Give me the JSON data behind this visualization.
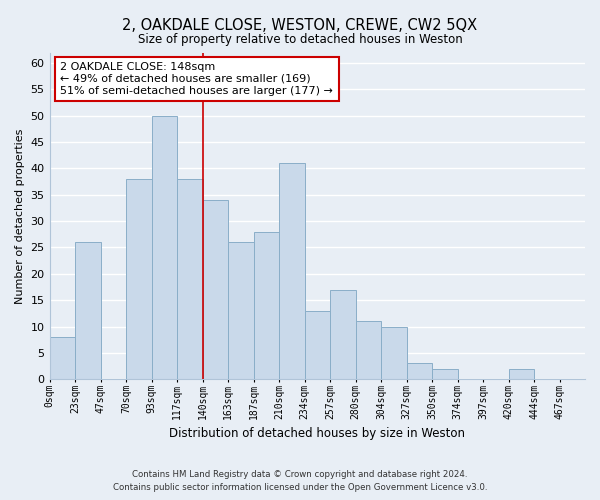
{
  "title": "2, OAKDALE CLOSE, WESTON, CREWE, CW2 5QX",
  "subtitle": "Size of property relative to detached houses in Weston",
  "xlabel": "Distribution of detached houses by size in Weston",
  "ylabel": "Number of detached properties",
  "bar_color": "#c9d9ea",
  "bar_edge_color": "#8aaec8",
  "bin_labels": [
    "0sqm",
    "23sqm",
    "47sqm",
    "70sqm",
    "93sqm",
    "117sqm",
    "140sqm",
    "163sqm",
    "187sqm",
    "210sqm",
    "234sqm",
    "257sqm",
    "280sqm",
    "304sqm",
    "327sqm",
    "350sqm",
    "374sqm",
    "397sqm",
    "420sqm",
    "444sqm",
    "467sqm"
  ],
  "bar_heights": [
    8,
    26,
    0,
    38,
    50,
    38,
    34,
    26,
    28,
    41,
    13,
    17,
    11,
    10,
    3,
    2,
    0,
    0,
    2,
    0,
    0
  ],
  "ylim": [
    0,
    62
  ],
  "yticks": [
    0,
    5,
    10,
    15,
    20,
    25,
    30,
    35,
    40,
    45,
    50,
    55,
    60
  ],
  "vline_x": 6,
  "vline_color": "#cc0000",
  "annotation_text": "2 OAKDALE CLOSE: 148sqm\n← 49% of detached houses are smaller (169)\n51% of semi-detached houses are larger (177) →",
  "annotation_box_color": "#ffffff",
  "annotation_box_edge": "#cc0000",
  "footer_line1": "Contains HM Land Registry data © Crown copyright and database right 2024.",
  "footer_line2": "Contains public sector information licensed under the Open Government Licence v3.0.",
  "bg_color": "#e8eef5",
  "grid_color": "#ffffff",
  "spine_color": "#b0c4d8"
}
